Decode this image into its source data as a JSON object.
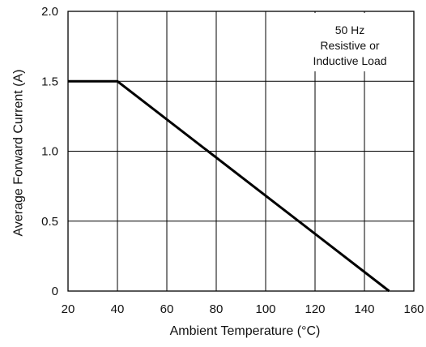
{
  "chart_data": {
    "type": "line",
    "xlabel": "Ambient Temperature (°C)",
    "ylabel": "Average Forward Current (A)",
    "xlim": [
      20,
      160
    ],
    "ylim": [
      0,
      2.0
    ],
    "x_ticks": [
      20,
      40,
      60,
      80,
      100,
      120,
      140,
      160
    ],
    "x_tick_labels": [
      "20",
      "40",
      "60",
      "80",
      "100",
      "120",
      "140",
      "160"
    ],
    "y_ticks": [
      0,
      0.5,
      1.0,
      1.5,
      2.0
    ],
    "y_tick_labels": [
      "0",
      "0.5",
      "1.0",
      "1.5",
      "2.0"
    ],
    "grid": true,
    "annotation": [
      "50 Hz",
      "Resistive or",
      "Inductive Load"
    ],
    "series": [
      {
        "x": [
          20,
          40,
          150
        ],
        "y": [
          1.5,
          1.5,
          0
        ]
      }
    ],
    "colors": {
      "line": "#000000",
      "grid": "#000000"
    }
  }
}
